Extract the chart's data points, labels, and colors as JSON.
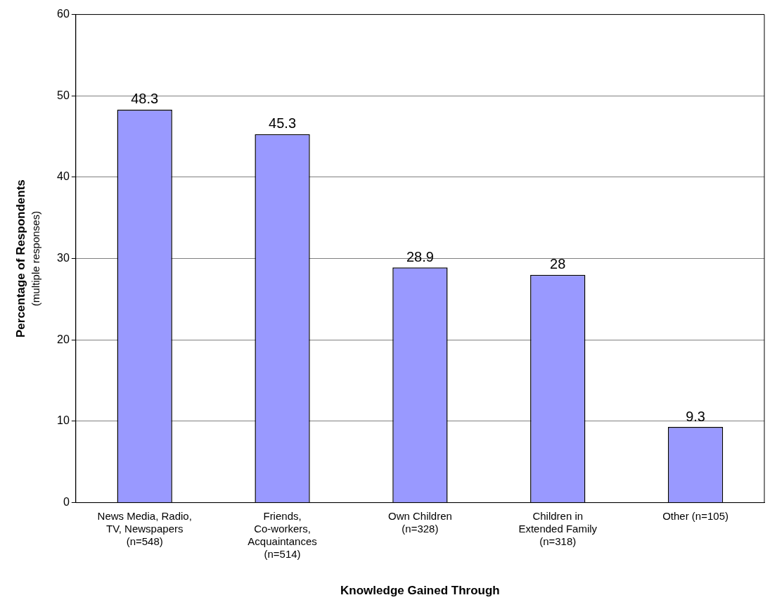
{
  "chart_data": {
    "type": "bar",
    "xlabel": "Knowledge Gained Through",
    "ylabel": "Percentage of Respondents",
    "annotations": [
      "(multiple responses)"
    ],
    "categories": [
      "News Media, Radio, TV, Newspapers (n=548)",
      "Friends, Co-workers, Acquaintances (n=514)",
      "Own Children (n=328)",
      "Children in Extended Family (n=318)",
      "Other (n=105)"
    ],
    "values": [
      48.3,
      45.3,
      28.9,
      28,
      9.3
    ],
    "color": "#9999ff",
    "ylim": [
      0,
      60
    ],
    "yticks": [
      0,
      10,
      20,
      30,
      40,
      50,
      60
    ],
    "grid": "y",
    "data_labels": true,
    "legend": false
  }
}
